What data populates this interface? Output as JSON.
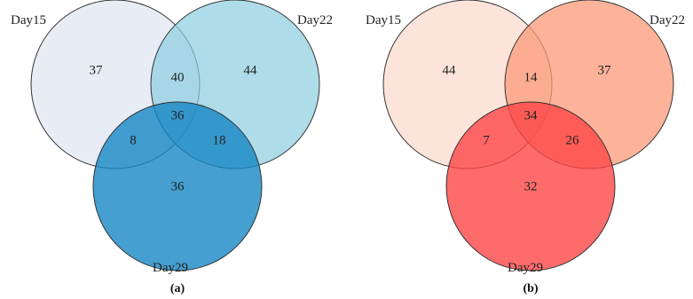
{
  "panels": [
    {
      "id": "a",
      "caption": "(a)",
      "sets": [
        {
          "name": "Day15",
          "color": "#dde4f1"
        },
        {
          "name": "Day22",
          "color": "#8ccde0"
        },
        {
          "name": "Day29",
          "color": "#1787c4"
        }
      ],
      "regions": {
        "day15_only": "37",
        "day22_only": "44",
        "day29_only": "36",
        "day15_day22": "40",
        "day15_day29": "8",
        "day22_day29": "18",
        "all_three": "36"
      }
    },
    {
      "id": "b",
      "caption": "(b)",
      "sets": [
        {
          "name": "Day15",
          "color": "#fcd9cc"
        },
        {
          "name": "Day22",
          "color": "#fb9a78"
        },
        {
          "name": "Day29",
          "color": "#fd4646"
        }
      ],
      "regions": {
        "day15_only": "44",
        "day22_only": "37",
        "day29_only": "32",
        "day15_day22": "14",
        "day15_day29": "7",
        "day22_day29": "26",
        "all_three": "34"
      }
    }
  ]
}
